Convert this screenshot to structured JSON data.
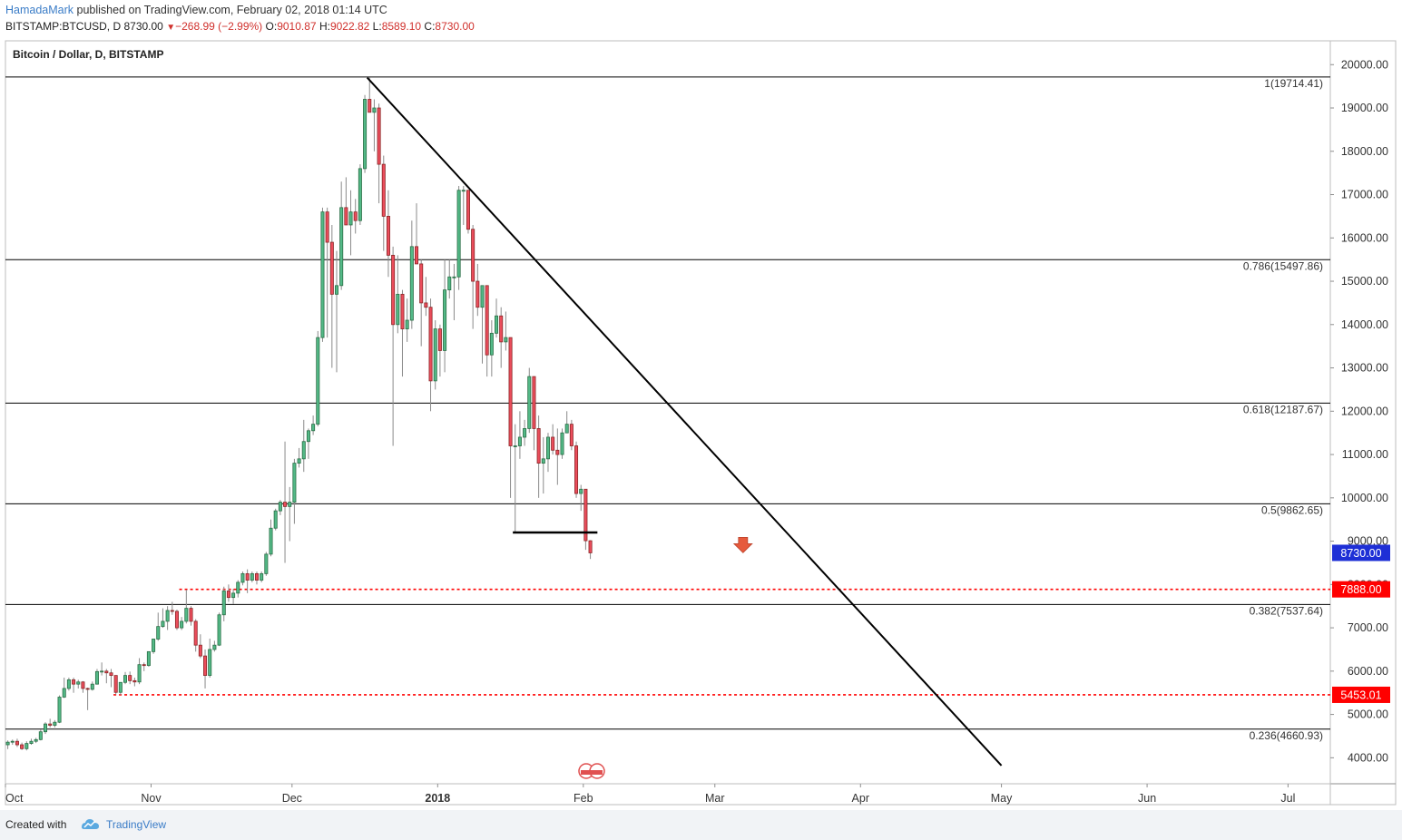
{
  "header": {
    "author": "HamadaMark",
    "published": " published on TradingView.com, February 02, 2018 01:14 UTC",
    "symbol": "BITSTAMP:BTCUSD, D",
    "last": "8730.00",
    "change": "−268.99 (−2.99%)",
    "o_label": "O:",
    "o_value": "9010.87",
    "h_label": "H:",
    "h_value": "9022.82",
    "l_label": "L:",
    "l_value": "8589.10",
    "c_label": "C:",
    "c_value": "8730.00"
  },
  "footer": {
    "created_with": "Created with",
    "brand": "TradingView"
  },
  "colors": {
    "up": "#53b987",
    "down": "#eb4d5c",
    "up_border": "#2b6e46",
    "down_border": "#8a2626",
    "support": "#ff0000",
    "last_price_tag": "#1e2fd6",
    "line": "#000000"
  },
  "chart_data": {
    "type": "candlestick",
    "title": "Bitcoin / Dollar, D, BITSTAMP",
    "x_start": "2017-10-01",
    "x_end": "2018-07-10",
    "ylim": [
      3400,
      20550
    ],
    "y_ticks": [
      4000,
      5000,
      6000,
      7000,
      8000,
      9000,
      10000,
      11000,
      12000,
      13000,
      14000,
      15000,
      16000,
      17000,
      18000,
      19000,
      20000
    ],
    "y_tick_labels": [
      "4000.00",
      "5000.00",
      "6000.00",
      "7000.00",
      "8000.00",
      "9000.00",
      "10000.00",
      "11000.00",
      "12000.00",
      "13000.00",
      "14000.00",
      "15000.00",
      "16000.00",
      "17000.00",
      "18000.00",
      "19000.00",
      "20000.00"
    ],
    "x_ticks": [
      {
        "date": "2017-10-01",
        "label": "Oct",
        "bold": false
      },
      {
        "date": "2017-11-01",
        "label": "Nov",
        "bold": false
      },
      {
        "date": "2017-12-01",
        "label": "Dec",
        "bold": false
      },
      {
        "date": "2018-01-01",
        "label": "2018",
        "bold": true
      },
      {
        "date": "2018-02-01",
        "label": "Feb",
        "bold": false
      },
      {
        "date": "2018-03-01",
        "label": "Mar",
        "bold": false
      },
      {
        "date": "2018-04-01",
        "label": "Apr",
        "bold": false
      },
      {
        "date": "2018-05-01",
        "label": "May",
        "bold": false
      },
      {
        "date": "2018-06-01",
        "label": "Jun",
        "bold": false
      },
      {
        "date": "2018-07-01",
        "label": "Jul",
        "bold": false
      }
    ],
    "fib_levels": [
      {
        "value": 19714.41,
        "label": "1(19714.41)"
      },
      {
        "value": 15497.86,
        "label": "0.786(15497.86)"
      },
      {
        "value": 12187.67,
        "label": "0.618(12187.67)"
      },
      {
        "value": 9862.65,
        "label": "0.5(9862.65)"
      },
      {
        "value": 7537.64,
        "label": "0.382(7537.64)"
      },
      {
        "value": 4660.93,
        "label": "0.236(4660.93)"
      }
    ],
    "support_levels": [
      {
        "value": 7888.0,
        "label": "7888.00",
        "from": "2017-11-07"
      },
      {
        "value": 5453.01,
        "label": "5453.01",
        "from": "2017-10-24"
      }
    ],
    "last_price": {
      "value": 8730.0,
      "label": "8730.00"
    },
    "trendline": [
      [
        "2017-12-17",
        19700
      ],
      [
        "2018-05-01",
        3820
      ]
    ],
    "horizontal_segment": {
      "from": "2018-01-17",
      "to": "2018-02-04",
      "value": 9200
    },
    "arrow": {
      "date": "2018-03-07",
      "value": 8900,
      "direction": "down"
    },
    "candles": [
      {
        "d": "2017-10-01",
        "o": 4300,
        "h": 4400,
        "l": 4200,
        "c": 4360
      },
      {
        "d": "2017-10-02",
        "o": 4360,
        "h": 4420,
        "l": 4300,
        "c": 4380
      },
      {
        "d": "2017-10-03",
        "o": 4380,
        "h": 4440,
        "l": 4250,
        "c": 4300
      },
      {
        "d": "2017-10-04",
        "o": 4300,
        "h": 4350,
        "l": 4180,
        "c": 4210
      },
      {
        "d": "2017-10-05",
        "o": 4210,
        "h": 4380,
        "l": 4170,
        "c": 4330
      },
      {
        "d": "2017-10-06",
        "o": 4330,
        "h": 4440,
        "l": 4300,
        "c": 4380
      },
      {
        "d": "2017-10-07",
        "o": 4380,
        "h": 4460,
        "l": 4340,
        "c": 4420
      },
      {
        "d": "2017-10-08",
        "o": 4420,
        "h": 4650,
        "l": 4400,
        "c": 4600
      },
      {
        "d": "2017-10-09",
        "o": 4600,
        "h": 4820,
        "l": 4550,
        "c": 4780
      },
      {
        "d": "2017-10-10",
        "o": 4780,
        "h": 4900,
        "l": 4700,
        "c": 4750
      },
      {
        "d": "2017-10-11",
        "o": 4750,
        "h": 4870,
        "l": 4700,
        "c": 4820
      },
      {
        "d": "2017-10-12",
        "o": 4820,
        "h": 5440,
        "l": 4800,
        "c": 5400
      },
      {
        "d": "2017-10-13",
        "o": 5400,
        "h": 5850,
        "l": 5380,
        "c": 5600
      },
      {
        "d": "2017-10-14",
        "o": 5600,
        "h": 5850,
        "l": 5550,
        "c": 5800
      },
      {
        "d": "2017-10-15",
        "o": 5800,
        "h": 5850,
        "l": 5500,
        "c": 5700
      },
      {
        "d": "2017-10-16",
        "o": 5700,
        "h": 5800,
        "l": 5600,
        "c": 5750
      },
      {
        "d": "2017-10-17",
        "o": 5750,
        "h": 5770,
        "l": 5500,
        "c": 5600
      },
      {
        "d": "2017-10-18",
        "o": 5600,
        "h": 5620,
        "l": 5100,
        "c": 5580
      },
      {
        "d": "2017-10-19",
        "o": 5580,
        "h": 5760,
        "l": 5550,
        "c": 5700
      },
      {
        "d": "2017-10-20",
        "o": 5700,
        "h": 6050,
        "l": 5690,
        "c": 5990
      },
      {
        "d": "2017-10-21",
        "o": 5990,
        "h": 6200,
        "l": 5900,
        "c": 6000
      },
      {
        "d": "2017-10-22",
        "o": 6000,
        "h": 6050,
        "l": 5720,
        "c": 5960
      },
      {
        "d": "2017-10-23",
        "o": 5960,
        "h": 6050,
        "l": 5630,
        "c": 5900
      },
      {
        "d": "2017-10-24",
        "o": 5900,
        "h": 5900,
        "l": 5460,
        "c": 5510
      },
      {
        "d": "2017-10-25",
        "o": 5510,
        "h": 5740,
        "l": 5450,
        "c": 5740
      },
      {
        "d": "2017-10-26",
        "o": 5740,
        "h": 5980,
        "l": 5700,
        "c": 5900
      },
      {
        "d": "2017-10-27",
        "o": 5900,
        "h": 5990,
        "l": 5700,
        "c": 5780
      },
      {
        "d": "2017-10-28",
        "o": 5780,
        "h": 5850,
        "l": 5650,
        "c": 5750
      },
      {
        "d": "2017-10-29",
        "o": 5750,
        "h": 6300,
        "l": 5700,
        "c": 6150
      },
      {
        "d": "2017-10-30",
        "o": 6150,
        "h": 6200,
        "l": 6000,
        "c": 6130
      },
      {
        "d": "2017-10-31",
        "o": 6130,
        "h": 6450,
        "l": 6100,
        "c": 6450
      },
      {
        "d": "2017-11-01",
        "o": 6450,
        "h": 6750,
        "l": 6400,
        "c": 6740
      },
      {
        "d": "2017-11-02",
        "o": 6740,
        "h": 7350,
        "l": 6700,
        "c": 7030
      },
      {
        "d": "2017-11-03",
        "o": 7030,
        "h": 7450,
        "l": 7000,
        "c": 7150
      },
      {
        "d": "2017-11-04",
        "o": 7150,
        "h": 7500,
        "l": 6950,
        "c": 7400
      },
      {
        "d": "2017-11-05",
        "o": 7400,
        "h": 7600,
        "l": 7300,
        "c": 7380
      },
      {
        "d": "2017-11-06",
        "o": 7380,
        "h": 7420,
        "l": 6950,
        "c": 7000
      },
      {
        "d": "2017-11-07",
        "o": 7000,
        "h": 7250,
        "l": 6950,
        "c": 7150
      },
      {
        "d": "2017-11-08",
        "o": 7150,
        "h": 7880,
        "l": 7100,
        "c": 7450
      },
      {
        "d": "2017-11-09",
        "o": 7450,
        "h": 7500,
        "l": 7050,
        "c": 7150
      },
      {
        "d": "2017-11-10",
        "o": 7150,
        "h": 7200,
        "l": 6450,
        "c": 6600
      },
      {
        "d": "2017-11-11",
        "o": 6600,
        "h": 6850,
        "l": 6300,
        "c": 6350
      },
      {
        "d": "2017-11-12",
        "o": 6350,
        "h": 6500,
        "l": 5600,
        "c": 5900
      },
      {
        "d": "2017-11-13",
        "o": 5900,
        "h": 6750,
        "l": 5850,
        "c": 6500
      },
      {
        "d": "2017-11-14",
        "o": 6500,
        "h": 6700,
        "l": 6450,
        "c": 6600
      },
      {
        "d": "2017-11-15",
        "o": 6600,
        "h": 7350,
        "l": 6580,
        "c": 7300
      },
      {
        "d": "2017-11-16",
        "o": 7300,
        "h": 7950,
        "l": 7150,
        "c": 7850
      },
      {
        "d": "2017-11-17",
        "o": 7850,
        "h": 8000,
        "l": 7600,
        "c": 7700
      },
      {
        "d": "2017-11-18",
        "o": 7700,
        "h": 7900,
        "l": 7550,
        "c": 7800
      },
      {
        "d": "2017-11-19",
        "o": 7800,
        "h": 8100,
        "l": 7700,
        "c": 8050
      },
      {
        "d": "2017-11-20",
        "o": 8050,
        "h": 8300,
        "l": 7980,
        "c": 8250
      },
      {
        "d": "2017-11-21",
        "o": 8250,
        "h": 8350,
        "l": 7800,
        "c": 8100
      },
      {
        "d": "2017-11-22",
        "o": 8100,
        "h": 8300,
        "l": 8050,
        "c": 8250
      },
      {
        "d": "2017-11-23",
        "o": 8250,
        "h": 8300,
        "l": 8000,
        "c": 8100
      },
      {
        "d": "2017-11-24",
        "o": 8100,
        "h": 8300,
        "l": 8050,
        "c": 8250
      },
      {
        "d": "2017-11-25",
        "o": 8250,
        "h": 8750,
        "l": 8200,
        "c": 8700
      },
      {
        "d": "2017-11-26",
        "o": 8700,
        "h": 9500,
        "l": 8650,
        "c": 9300
      },
      {
        "d": "2017-11-27",
        "o": 9300,
        "h": 9750,
        "l": 9250,
        "c": 9700
      },
      {
        "d": "2017-11-28",
        "o": 9700,
        "h": 9950,
        "l": 9600,
        "c": 9900
      },
      {
        "d": "2017-11-29",
        "o": 9900,
        "h": 11300,
        "l": 8500,
        "c": 9800
      },
      {
        "d": "2017-11-30",
        "o": 9800,
        "h": 10250,
        "l": 9000,
        "c": 9900
      },
      {
        "d": "2017-12-01",
        "o": 9900,
        "h": 10900,
        "l": 9400,
        "c": 10800
      },
      {
        "d": "2017-12-02",
        "o": 10800,
        "h": 11150,
        "l": 10700,
        "c": 10900
      },
      {
        "d": "2017-12-03",
        "o": 10900,
        "h": 11800,
        "l": 10600,
        "c": 11300
      },
      {
        "d": "2017-12-04",
        "o": 11300,
        "h": 11600,
        "l": 10900,
        "c": 11550
      },
      {
        "d": "2017-12-05",
        "o": 11550,
        "h": 11900,
        "l": 11450,
        "c": 11700
      },
      {
        "d": "2017-12-06",
        "o": 11700,
        "h": 13850,
        "l": 11650,
        "c": 13700
      },
      {
        "d": "2017-12-07",
        "o": 13700,
        "h": 16700,
        "l": 13600,
        "c": 16600
      },
      {
        "d": "2017-12-08",
        "o": 16600,
        "h": 16700,
        "l": 13700,
        "c": 15900
      },
      {
        "d": "2017-12-09",
        "o": 15900,
        "h": 16300,
        "l": 13000,
        "c": 14700
      },
      {
        "d": "2017-12-10",
        "o": 14700,
        "h": 15700,
        "l": 12900,
        "c": 14900
      },
      {
        "d": "2017-12-11",
        "o": 14900,
        "h": 17300,
        "l": 14800,
        "c": 16700
      },
      {
        "d": "2017-12-12",
        "o": 16700,
        "h": 17400,
        "l": 16300,
        "c": 16300
      },
      {
        "d": "2017-12-13",
        "o": 16300,
        "h": 17100,
        "l": 15600,
        "c": 16600
      },
      {
        "d": "2017-12-14",
        "o": 16600,
        "h": 16900,
        "l": 16100,
        "c": 16400
      },
      {
        "d": "2017-12-15",
        "o": 16400,
        "h": 17700,
        "l": 16300,
        "c": 17600
      },
      {
        "d": "2017-12-16",
        "o": 17600,
        "h": 19300,
        "l": 17500,
        "c": 19200
      },
      {
        "d": "2017-12-17",
        "o": 19200,
        "h": 19700,
        "l": 18900,
        "c": 18900
      },
      {
        "d": "2017-12-18",
        "o": 18900,
        "h": 19200,
        "l": 18000,
        "c": 19000
      },
      {
        "d": "2017-12-19",
        "o": 19000,
        "h": 19100,
        "l": 16800,
        "c": 17700
      },
      {
        "d": "2017-12-20",
        "o": 17700,
        "h": 17900,
        "l": 15700,
        "c": 16500
      },
      {
        "d": "2017-12-21",
        "o": 16500,
        "h": 17100,
        "l": 15100,
        "c": 15600
      },
      {
        "d": "2017-12-22",
        "o": 15600,
        "h": 15800,
        "l": 11200,
        "c": 14000
      },
      {
        "d": "2017-12-23",
        "o": 14000,
        "h": 15600,
        "l": 13800,
        "c": 14700
      },
      {
        "d": "2017-12-24",
        "o": 14700,
        "h": 14800,
        "l": 12800,
        "c": 13900
      },
      {
        "d": "2017-12-25",
        "o": 13900,
        "h": 14600,
        "l": 13600,
        "c": 14100
      },
      {
        "d": "2017-12-26",
        "o": 14100,
        "h": 16400,
        "l": 13900,
        "c": 15800
      },
      {
        "d": "2017-12-27",
        "o": 15800,
        "h": 16800,
        "l": 15400,
        "c": 15400
      },
      {
        "d": "2017-12-28",
        "o": 15400,
        "h": 15500,
        "l": 13500,
        "c": 14500
      },
      {
        "d": "2017-12-29",
        "o": 14500,
        "h": 15100,
        "l": 14200,
        "c": 14400
      },
      {
        "d": "2017-12-30",
        "o": 14400,
        "h": 14600,
        "l": 12000,
        "c": 12700
      },
      {
        "d": "2017-12-31",
        "o": 12700,
        "h": 14100,
        "l": 12500,
        "c": 13900
      },
      {
        "d": "2018-01-01",
        "o": 13900,
        "h": 14000,
        "l": 12800,
        "c": 13400
      },
      {
        "d": "2018-01-02",
        "o": 13400,
        "h": 15500,
        "l": 12900,
        "c": 14800
      },
      {
        "d": "2018-01-03",
        "o": 14800,
        "h": 15500,
        "l": 14600,
        "c": 15100
      },
      {
        "d": "2018-01-04",
        "o": 15100,
        "h": 15400,
        "l": 14100,
        "c": 15100
      },
      {
        "d": "2018-01-05",
        "o": 15100,
        "h": 17200,
        "l": 14800,
        "c": 17100
      },
      {
        "d": "2018-01-06",
        "o": 17100,
        "h": 17200,
        "l": 16300,
        "c": 17100
      },
      {
        "d": "2018-01-07",
        "o": 17100,
        "h": 17100,
        "l": 16100,
        "c": 16200
      },
      {
        "d": "2018-01-08",
        "o": 16200,
        "h": 16300,
        "l": 13900,
        "c": 15000
      },
      {
        "d": "2018-01-09",
        "o": 15000,
        "h": 15400,
        "l": 14200,
        "c": 14400
      },
      {
        "d": "2018-01-10",
        "o": 14400,
        "h": 14900,
        "l": 13100,
        "c": 14900
      },
      {
        "d": "2018-01-11",
        "o": 14900,
        "h": 14900,
        "l": 12800,
        "c": 13300
      },
      {
        "d": "2018-01-12",
        "o": 13300,
        "h": 14100,
        "l": 12800,
        "c": 13800
      },
      {
        "d": "2018-01-13",
        "o": 13800,
        "h": 14600,
        "l": 13700,
        "c": 14200
      },
      {
        "d": "2018-01-14",
        "o": 14200,
        "h": 14400,
        "l": 13000,
        "c": 13600
      },
      {
        "d": "2018-01-15",
        "o": 13600,
        "h": 14300,
        "l": 13400,
        "c": 13700
      },
      {
        "d": "2018-01-16",
        "o": 13700,
        "h": 13700,
        "l": 10000,
        "c": 11200
      },
      {
        "d": "2018-01-17",
        "o": 11200,
        "h": 11700,
        "l": 9200,
        "c": 11200
      },
      {
        "d": "2018-01-18",
        "o": 11200,
        "h": 12000,
        "l": 10900,
        "c": 11400
      },
      {
        "d": "2018-01-19",
        "o": 11400,
        "h": 11800,
        "l": 11200,
        "c": 11600
      },
      {
        "d": "2018-01-20",
        "o": 11600,
        "h": 13000,
        "l": 11500,
        "c": 12800
      },
      {
        "d": "2018-01-21",
        "o": 12800,
        "h": 12800,
        "l": 11100,
        "c": 11600
      },
      {
        "d": "2018-01-22",
        "o": 11600,
        "h": 11900,
        "l": 10000,
        "c": 10800
      },
      {
        "d": "2018-01-23",
        "o": 10800,
        "h": 11400,
        "l": 10100,
        "c": 10900
      },
      {
        "d": "2018-01-24",
        "o": 10900,
        "h": 11500,
        "l": 10600,
        "c": 11400
      },
      {
        "d": "2018-01-25",
        "o": 11400,
        "h": 11700,
        "l": 11000,
        "c": 11100
      },
      {
        "d": "2018-01-26",
        "o": 11100,
        "h": 11600,
        "l": 10300,
        "c": 11000
      },
      {
        "d": "2018-01-27",
        "o": 11000,
        "h": 11600,
        "l": 10900,
        "c": 11500
      },
      {
        "d": "2018-01-28",
        "o": 11500,
        "h": 12000,
        "l": 11500,
        "c": 11700
      },
      {
        "d": "2018-01-29",
        "o": 11700,
        "h": 11800,
        "l": 11100,
        "c": 11200
      },
      {
        "d": "2018-01-30",
        "o": 11200,
        "h": 11300,
        "l": 10000,
        "c": 10100
      },
      {
        "d": "2018-01-31",
        "o": 10100,
        "h": 10300,
        "l": 9700,
        "c": 10200
      },
      {
        "d": "2018-02-01",
        "o": 10200,
        "h": 10200,
        "l": 8800,
        "c": 9010
      },
      {
        "d": "2018-02-02",
        "o": 9010,
        "h": 9022,
        "l": 8589,
        "c": 8730
      }
    ]
  }
}
